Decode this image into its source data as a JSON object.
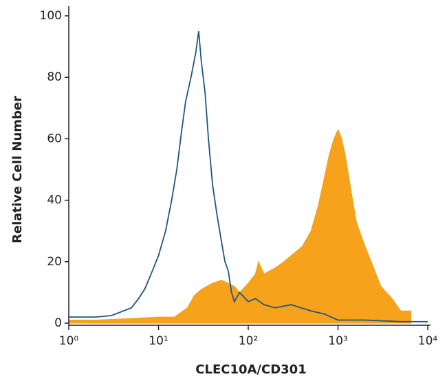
{
  "chart_data": {
    "type": "line",
    "xlabel": "CLEC10A/CD301",
    "ylabel": "Relative Cell Number",
    "xscale": "log",
    "xlim": [
      1,
      10000
    ],
    "ylim": [
      0,
      100
    ],
    "xticks": [
      {
        "value": 1,
        "label": "10⁰"
      },
      {
        "value": 10,
        "label": "10¹"
      },
      {
        "value": 100,
        "label": "10²"
      },
      {
        "value": 1000,
        "label": "10³"
      },
      {
        "value": 10000,
        "label": "10⁴"
      }
    ],
    "yticks": [
      0,
      20,
      40,
      60,
      80,
      100
    ],
    "series": [
      {
        "color": "#f7a21b",
        "filled": true,
        "x": [
          1,
          2,
          5,
          10,
          15,
          21,
          25,
          30,
          40,
          50,
          60,
          70,
          80,
          100,
          120,
          130,
          150,
          200,
          250,
          300,
          400,
          500,
          600,
          700,
          800,
          900,
          1000,
          1100,
          1200,
          1400,
          1600,
          2000,
          2500,
          3000,
          4000,
          5000,
          6500
        ],
        "values": [
          1,
          1,
          1.5,
          2,
          2,
          5,
          9,
          11,
          13,
          14,
          13,
          12,
          10,
          13,
          16,
          20,
          16,
          18,
          20,
          22,
          25,
          30,
          38,
          47,
          55,
          60,
          63,
          60,
          55,
          43,
          33,
          25,
          18,
          12,
          8,
          4,
          4
        ]
      },
      {
        "color": "#1f5580",
        "filled": false,
        "x": [
          1,
          2,
          3,
          5,
          6,
          7,
          8,
          10,
          12,
          14,
          16,
          18,
          20,
          23,
          26,
          28,
          30,
          33,
          36,
          40,
          45,
          50,
          55,
          60,
          65,
          70,
          80,
          100,
          120,
          150,
          200,
          300,
          500,
          700,
          1000,
          2000,
          5000,
          10000
        ],
        "values": [
          2,
          2,
          2.5,
          5,
          8,
          11,
          15,
          22,
          30,
          40,
          50,
          62,
          72,
          80,
          88,
          95,
          85,
          75,
          60,
          45,
          35,
          27,
          20,
          17,
          10,
          7,
          10,
          7,
          8,
          6,
          5,
          6,
          4,
          3,
          1,
          1,
          0.5,
          0.5
        ]
      }
    ]
  }
}
